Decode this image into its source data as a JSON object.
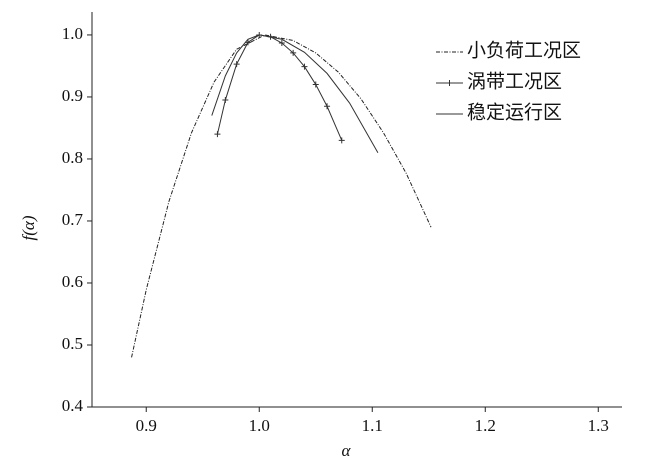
{
  "chart_data": {
    "type": "line",
    "xlabel": "α",
    "ylabel": "f(α)",
    "xlim": [
      0.852,
      1.321
    ],
    "ylim": [
      0.4,
      1.037
    ],
    "xticks": [
      0.9,
      {
        "value": 1.0,
        "label": "1.0"
      },
      1.1,
      1.2,
      1.3
    ],
    "yticks": [
      0.4,
      0.5,
      0.6,
      0.7,
      0.8,
      0.9,
      {
        "value": 1.0,
        "label": "1.0"
      }
    ],
    "legend": "upper right",
    "series": [
      {
        "name": "小负荷工况区",
        "color": "#222222",
        "style": "dashdot",
        "x": [
          0.887,
          0.9,
          0.92,
          0.94,
          0.96,
          0.98,
          1.005,
          1.03,
          1.05,
          1.07,
          1.09,
          1.11,
          1.13,
          1.152
        ],
        "values": [
          0.48,
          0.589,
          0.731,
          0.842,
          0.924,
          0.977,
          1.0,
          0.991,
          0.971,
          0.94,
          0.897,
          0.842,
          0.777,
          0.69
        ]
      },
      {
        "name": "涡带工况区",
        "color": "#333333",
        "style": "plus",
        "x": [
          0.963,
          0.97,
          0.98,
          0.99,
          1.0,
          1.01,
          1.02,
          1.03,
          1.04,
          1.05,
          1.06,
          1.073
        ],
        "values": [
          0.84,
          0.895,
          0.953,
          0.988,
          1.0,
          0.997,
          0.987,
          0.971,
          0.949,
          0.92,
          0.885,
          0.83
        ]
      },
      {
        "name": "稳定运行区",
        "color": "#333333",
        "style": "solid",
        "x": [
          0.958,
          0.97,
          0.98,
          0.99,
          1.0,
          1.02,
          1.04,
          1.06,
          1.08,
          1.105
        ],
        "values": [
          0.87,
          0.934,
          0.971,
          0.993,
          1.0,
          0.993,
          0.972,
          0.938,
          0.89,
          0.81
        ]
      }
    ]
  }
}
